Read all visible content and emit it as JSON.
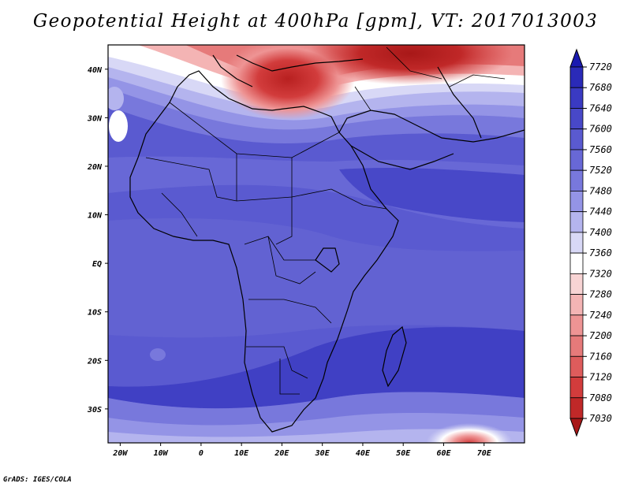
{
  "title": "Geopotential Height at 400hPa [gpm], VT: 2017013003",
  "credit": "GrADS: IGES/COLA",
  "map": {
    "lon_range": [
      -23,
      80
    ],
    "lat_range": [
      -37,
      45
    ],
    "lon_ticks": [
      {
        "value": -20,
        "label": "20W"
      },
      {
        "value": -10,
        "label": "10W"
      },
      {
        "value": 0,
        "label": "0"
      },
      {
        "value": 10,
        "label": "10E"
      },
      {
        "value": 20,
        "label": "20E"
      },
      {
        "value": 30,
        "label": "30E"
      },
      {
        "value": 40,
        "label": "40E"
      },
      {
        "value": 50,
        "label": "50E"
      },
      {
        "value": 60,
        "label": "60E"
      },
      {
        "value": 70,
        "label": "70E"
      }
    ],
    "lat_ticks": [
      {
        "value": 40,
        "label": "40N"
      },
      {
        "value": 30,
        "label": "30N"
      },
      {
        "value": 20,
        "label": "20N"
      },
      {
        "value": 10,
        "label": "10N"
      },
      {
        "value": 0,
        "label": "EQ"
      },
      {
        "value": -10,
        "label": "10S"
      },
      {
        "value": -20,
        "label": "20S"
      },
      {
        "value": -30,
        "label": "30S"
      }
    ]
  },
  "colorbar": {
    "labels": [
      "7720",
      "7680",
      "7640",
      "7600",
      "7560",
      "7520",
      "7480",
      "7440",
      "7400",
      "7360",
      "7320",
      "7280",
      "7240",
      "7200",
      "7160",
      "7120",
      "7080",
      "7030"
    ],
    "colors": [
      "#1a1ab0",
      "#2a2ab8",
      "#3a3ac2",
      "#4848c8",
      "#5a5ad0",
      "#6868d6",
      "#7878dc",
      "#9494e6",
      "#b4b4ee",
      "#d8d8f6",
      "#ffffff",
      "#f8d4d4",
      "#f4b4b4",
      "#ee9494",
      "#e67a7a",
      "#de5c5c",
      "#d23c3c",
      "#c02828",
      "#a81818"
    ]
  }
}
